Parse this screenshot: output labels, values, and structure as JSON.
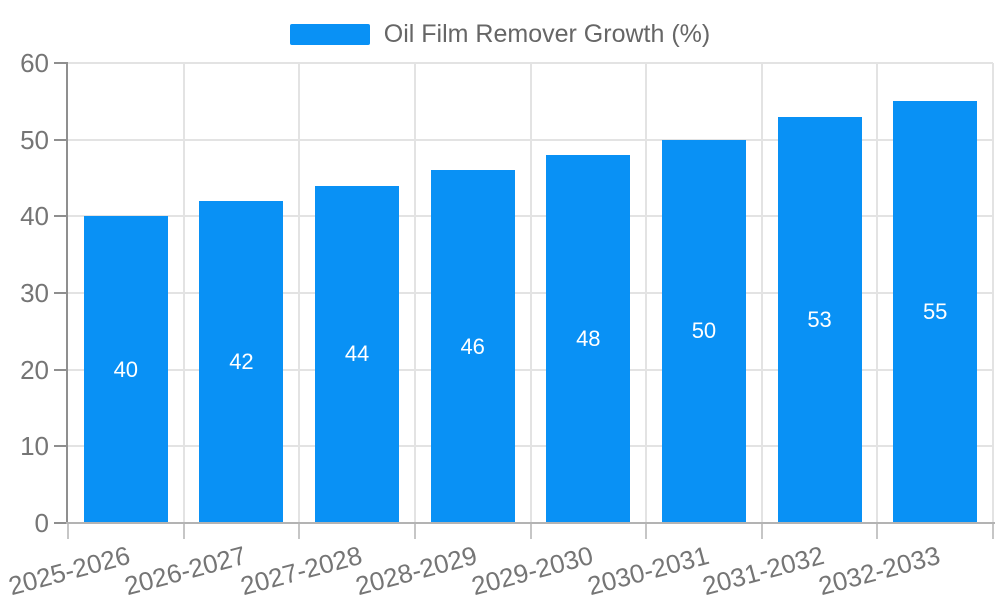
{
  "legend": {
    "items": [
      {
        "label": "Oil Film Remover Growth (%)",
        "color": "#0991f5"
      }
    ],
    "position": "top-center"
  },
  "chart_data": {
    "type": "bar",
    "title": "",
    "xlabel": "",
    "ylabel": "",
    "categories": [
      "2025-2026",
      "2026-2027",
      "2027-2028",
      "2028-2029",
      "2029-2030",
      "2030-2031",
      "2031-2032",
      "2032-2033"
    ],
    "series": [
      {
        "name": "Oil Film Remover Growth (%)",
        "color": "#0991f5",
        "values": [
          40,
          42,
          44,
          46,
          48,
          50,
          53,
          55
        ]
      }
    ],
    "bar_value_labels": [
      "40",
      "42",
      "44",
      "46",
      "48",
      "50",
      "53",
      "55"
    ],
    "bar_label_position": "inside-center",
    "y_ticks": [
      0,
      10,
      20,
      30,
      40,
      50,
      60
    ],
    "ylim": [
      0,
      60
    ],
    "grid": true,
    "legend_position": "top",
    "x_label_rotation_deg": 15
  },
  "colors": {
    "bar": "#0991f5",
    "bar_label": "#ffffff",
    "axis_label": "#757575",
    "legend_text": "#666666",
    "gridline": "#e3e3e3",
    "y_axis_line": "#8f8f8f",
    "x_axis_line": "#b3b3b3",
    "tick": "#c6c6c6",
    "background": "#ffffff"
  }
}
